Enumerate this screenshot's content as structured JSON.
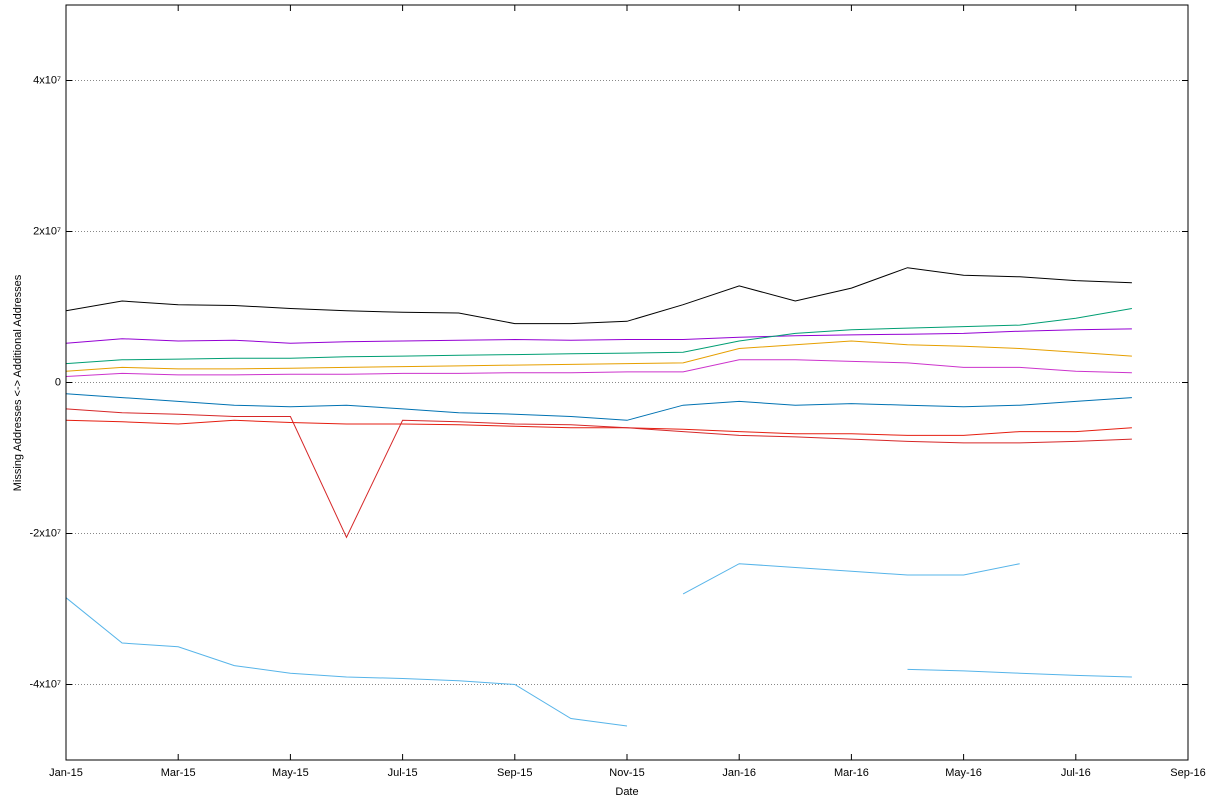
{
  "chart_data": {
    "type": "line",
    "x_label": "Date",
    "y_label": "Missing Addresses <-> Additional Addresses",
    "x": [
      "2015-01",
      "2015-02",
      "2015-03",
      "2015-04",
      "2015-05",
      "2015-06",
      "2015-07",
      "2015-08",
      "2015-09",
      "2015-10",
      "2015-11",
      "2015-12",
      "2016-01",
      "2016-02",
      "2016-03",
      "2016-04",
      "2016-05",
      "2016-06",
      "2016-07",
      "2016-08"
    ],
    "xlim": [
      "2015-01",
      "2016-09"
    ],
    "xticks": [
      {
        "value": "2015-01",
        "label": "Jan-15"
      },
      {
        "value": "2015-03",
        "label": "Mar-15"
      },
      {
        "value": "2015-05",
        "label": "May-15"
      },
      {
        "value": "2015-07",
        "label": "Jul-15"
      },
      {
        "value": "2015-09",
        "label": "Sep-15"
      },
      {
        "value": "2015-11",
        "label": "Nov-15"
      },
      {
        "value": "2016-01",
        "label": "Jan-16"
      },
      {
        "value": "2016-03",
        "label": "Mar-16"
      },
      {
        "value": "2016-05",
        "label": "May-16"
      },
      {
        "value": "2016-07",
        "label": "Jul-16"
      },
      {
        "value": "2016-09",
        "label": "Sep-16"
      }
    ],
    "ylim": [
      -50000000,
      50000000
    ],
    "yticks": [
      {
        "value": -40000000,
        "label": "-4x10⁷"
      },
      {
        "value": -20000000,
        "label": "-2x10⁷"
      },
      0,
      {
        "value": 20000000,
        "label": "2x10⁷"
      },
      {
        "value": 40000000,
        "label": "4x10⁷"
      }
    ],
    "grid": true,
    "series": [
      {
        "color": "#000000",
        "values": [
          9500000,
          10800000,
          10300000,
          10200000,
          9800000,
          9500000,
          9300000,
          9200000,
          7800000,
          7800000,
          8100000,
          10300000,
          12800000,
          10800000,
          12500000,
          15200000,
          14200000,
          14000000,
          13500000,
          13200000
        ]
      },
      {
        "color": "#9400d3",
        "values": [
          5200000,
          5800000,
          5500000,
          5600000,
          5200000,
          5400000,
          5500000,
          5600000,
          5700000,
          5600000,
          5700000,
          5700000,
          6000000,
          6200000,
          6300000,
          6400000,
          6500000,
          6800000,
          7000000,
          7100000
        ]
      },
      {
        "color": "#009e73",
        "values": [
          2500000,
          3000000,
          3100000,
          3200000,
          3200000,
          3400000,
          3500000,
          3600000,
          3700000,
          3800000,
          3900000,
          4000000,
          5500000,
          6500000,
          7000000,
          7200000,
          7400000,
          7600000,
          8500000,
          9800000
        ]
      },
      {
        "color": "#e69f00",
        "values": [
          1500000,
          2000000,
          1800000,
          1800000,
          1900000,
          2000000,
          2100000,
          2200000,
          2300000,
          2400000,
          2500000,
          2600000,
          4500000,
          5000000,
          5500000,
          5000000,
          4800000,
          4500000,
          4000000,
          3500000
        ]
      },
      {
        "color": "#cc33cc",
        "values": [
          800000,
          1200000,
          1000000,
          1000000,
          1100000,
          1100000,
          1200000,
          1200000,
          1300000,
          1300000,
          1400000,
          1400000,
          3000000,
          3000000,
          2800000,
          2600000,
          2000000,
          2000000,
          1500000,
          1300000
        ]
      },
      {
        "color": "#0072b2",
        "values": [
          -1500000,
          -2000000,
          -2500000,
          -3000000,
          -3200000,
          -3000000,
          -3500000,
          -4000000,
          -4200000,
          -4500000,
          -5000000,
          -3000000,
          -2500000,
          -3000000,
          -2800000,
          -3000000,
          -3200000,
          -3000000,
          -2500000,
          -2000000
        ]
      },
      {
        "color": "#e51e10",
        "values": [
          -5000000,
          -5200000,
          -5500000,
          -5000000,
          -5300000,
          -5500000,
          -5500000,
          -5600000,
          -5800000,
          -6000000,
          -6000000,
          -6200000,
          -6500000,
          -6800000,
          -6800000,
          -7000000,
          -7000000,
          -6500000,
          -6500000,
          -6000000
        ]
      },
      {
        "color": "#d62728",
        "values": [
          -3500000,
          -4000000,
          -4200000,
          -4500000,
          -4500000,
          -20500000,
          -5000000,
          -5200000,
          -5500000,
          -5600000,
          -6000000,
          -6500000,
          -7000000,
          -7200000,
          -7500000,
          -7800000,
          -8000000,
          -8000000,
          -7800000,
          -7500000
        ]
      },
      {
        "color": "#56b4e9",
        "values": [
          -28500000,
          -34500000,
          -35000000,
          -37500000,
          -38500000,
          -39000000,
          -39200000,
          -39500000,
          -40000000,
          -44500000,
          -45500000,
          null,
          null,
          null,
          null,
          null,
          null,
          null,
          null,
          null
        ]
      },
      {
        "color": "#56b4e9",
        "values": [
          null,
          null,
          null,
          null,
          null,
          null,
          null,
          null,
          null,
          null,
          null,
          -28000000,
          -24000000,
          -24500000,
          -25000000,
          -25500000,
          -25500000,
          -24000000,
          null,
          null
        ]
      },
      {
        "color": "#56b4e9",
        "values": [
          null,
          null,
          null,
          null,
          null,
          null,
          null,
          null,
          null,
          null,
          null,
          null,
          null,
          null,
          null,
          -38000000,
          -38200000,
          -38500000,
          -38800000,
          -39000000
        ]
      }
    ]
  }
}
